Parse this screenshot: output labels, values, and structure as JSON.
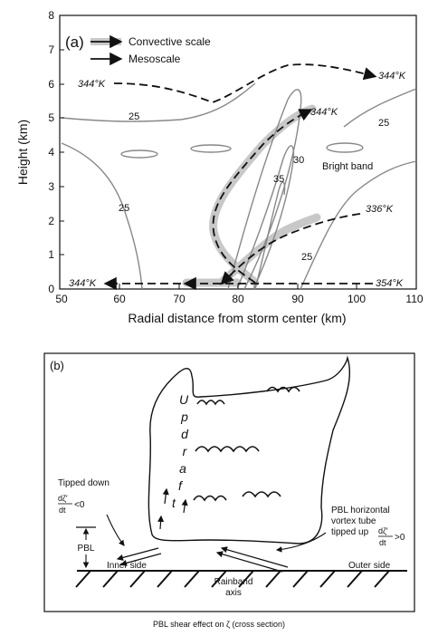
{
  "panel_a": {
    "label": "(a)",
    "legend": {
      "convective": "Convective scale",
      "mesoscale": "Mesoscale"
    },
    "ylabel": "Height (km)",
    "xlabel": "Radial distance from storm center (km)",
    "x_ticks": [
      "50",
      "60",
      "70",
      "80",
      "90",
      "100",
      "110"
    ],
    "y_ticks": [
      "0",
      "1",
      "2",
      "3",
      "4",
      "5",
      "6",
      "7",
      "8"
    ],
    "contour_labels": [
      "25",
      "25",
      "25",
      "25",
      "35",
      "30"
    ],
    "theta_labels": [
      "344°K",
      "344°K",
      "344°K",
      "336°K",
      "344°K",
      "354°K"
    ],
    "bright_band": "Bright band"
  },
  "panel_b": {
    "label": "(b)",
    "updraft_letters": [
      "U",
      "p",
      "d",
      "r",
      "a",
      "f",
      "t"
    ],
    "tipped_down": "Tipped down",
    "dz_neg": "<0",
    "dz_pos": ">0",
    "frac_num": "dζ′",
    "frac_den": "dt",
    "pbl": "PBL",
    "pbl_vortex": [
      "PBL horizontal",
      "vortex tube",
      "tipped up"
    ],
    "inner_side": "Inner side",
    "outer_side": "Outer side",
    "rainband_axis": [
      "Rainband",
      "axis"
    ]
  },
  "caption": "PBL shear effect on ζ (cross section)"
}
